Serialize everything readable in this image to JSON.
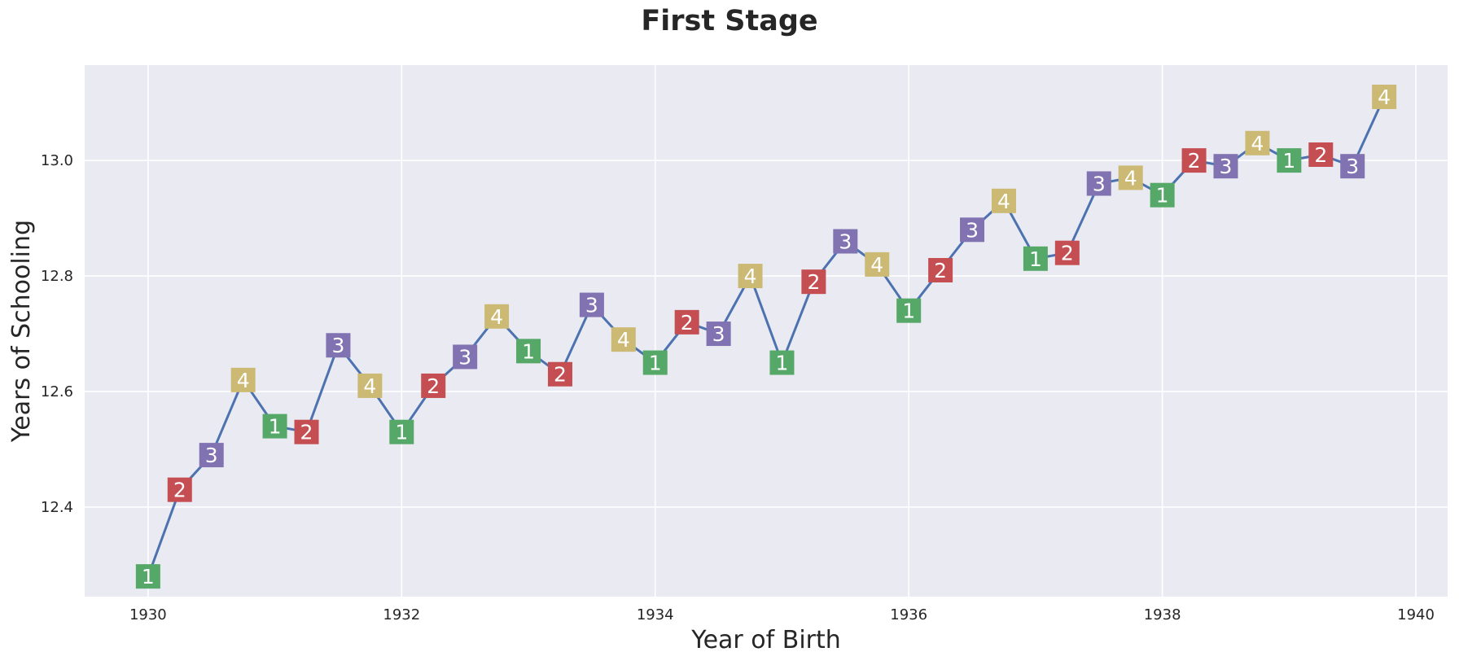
{
  "chart_data": {
    "type": "line",
    "title": "First Stage",
    "xlabel": "Year of Birth",
    "ylabel": "Years of Schooling",
    "xlim": [
      1929.5,
      1940.25
    ],
    "ylim": [
      12.245,
      13.165
    ],
    "xticks": [
      1930,
      1932,
      1934,
      1936,
      1938,
      1940
    ],
    "yticks": [
      12.4,
      12.6,
      12.8,
      13.0
    ],
    "xtick_labels": [
      "1930",
      "1932",
      "1934",
      "1936",
      "1938",
      "1940"
    ],
    "ytick_labels": [
      "12.4",
      "12.6",
      "12.8",
      "13.0"
    ],
    "grid": true,
    "line_color": "#4c72b0",
    "background": "#eaeaf2",
    "quarter_colors": {
      "1": "#55a868",
      "2": "#c44e52",
      "3": "#8172b2",
      "4": "#ccb974"
    },
    "points": [
      {
        "x": 1930.0,
        "y": 12.28,
        "q": "1"
      },
      {
        "x": 1930.25,
        "y": 12.43,
        "q": "2"
      },
      {
        "x": 1930.5,
        "y": 12.49,
        "q": "3"
      },
      {
        "x": 1930.75,
        "y": 12.62,
        "q": "4"
      },
      {
        "x": 1931.0,
        "y": 12.54,
        "q": "1"
      },
      {
        "x": 1931.25,
        "y": 12.53,
        "q": "2"
      },
      {
        "x": 1931.5,
        "y": 12.68,
        "q": "3"
      },
      {
        "x": 1931.75,
        "y": 12.61,
        "q": "4"
      },
      {
        "x": 1932.0,
        "y": 12.53,
        "q": "1"
      },
      {
        "x": 1932.25,
        "y": 12.61,
        "q": "2"
      },
      {
        "x": 1932.5,
        "y": 12.66,
        "q": "3"
      },
      {
        "x": 1932.75,
        "y": 12.73,
        "q": "4"
      },
      {
        "x": 1933.0,
        "y": 12.67,
        "q": "1"
      },
      {
        "x": 1933.25,
        "y": 12.63,
        "q": "2"
      },
      {
        "x": 1933.5,
        "y": 12.75,
        "q": "3"
      },
      {
        "x": 1933.75,
        "y": 12.69,
        "q": "4"
      },
      {
        "x": 1934.0,
        "y": 12.65,
        "q": "1"
      },
      {
        "x": 1934.25,
        "y": 12.72,
        "q": "2"
      },
      {
        "x": 1934.5,
        "y": 12.7,
        "q": "3"
      },
      {
        "x": 1934.75,
        "y": 12.8,
        "q": "4"
      },
      {
        "x": 1935.0,
        "y": 12.65,
        "q": "1"
      },
      {
        "x": 1935.25,
        "y": 12.79,
        "q": "2"
      },
      {
        "x": 1935.5,
        "y": 12.86,
        "q": "3"
      },
      {
        "x": 1935.75,
        "y": 12.82,
        "q": "4"
      },
      {
        "x": 1936.0,
        "y": 12.74,
        "q": "1"
      },
      {
        "x": 1936.25,
        "y": 12.81,
        "q": "2"
      },
      {
        "x": 1936.5,
        "y": 12.88,
        "q": "3"
      },
      {
        "x": 1936.75,
        "y": 12.93,
        "q": "4"
      },
      {
        "x": 1937.0,
        "y": 12.83,
        "q": "1"
      },
      {
        "x": 1937.25,
        "y": 12.84,
        "q": "2"
      },
      {
        "x": 1937.5,
        "y": 12.96,
        "q": "3"
      },
      {
        "x": 1937.75,
        "y": 12.97,
        "q": "4"
      },
      {
        "x": 1938.0,
        "y": 12.94,
        "q": "1"
      },
      {
        "x": 1938.25,
        "y": 13.0,
        "q": "2"
      },
      {
        "x": 1938.5,
        "y": 12.99,
        "q": "3"
      },
      {
        "x": 1938.75,
        "y": 13.03,
        "q": "4"
      },
      {
        "x": 1939.0,
        "y": 13.0,
        "q": "1"
      },
      {
        "x": 1939.25,
        "y": 13.01,
        "q": "2"
      },
      {
        "x": 1939.5,
        "y": 12.99,
        "q": "3"
      },
      {
        "x": 1939.75,
        "y": 13.11,
        "q": "4"
      }
    ]
  }
}
